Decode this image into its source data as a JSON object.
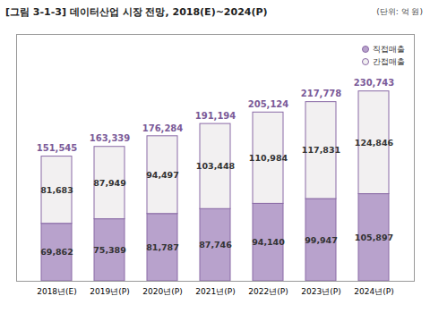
{
  "chart_data": {
    "type": "bar",
    "title": "[그림 3-1-3] 데이터산업 시장 전망, 2018(E)~2024(P)",
    "subtitle": "(단위: 억 원)",
    "categories": [
      "2018년(E)",
      "2019년(P)",
      "2020년(P)",
      "2021년(P)",
      "2022년(P)",
      "2023년(P)",
      "2024년(P)"
    ],
    "series": [
      {
        "name": "직접매출",
        "color": "#b8a2cc",
        "values": [
          69862,
          75389,
          81787,
          87746,
          94140,
          99947,
          105897
        ],
        "value_labels": [
          "69,862",
          "75,389",
          "81,787",
          "87,746",
          "94,140",
          "99,947",
          "105,897"
        ]
      },
      {
        "name": "간접매출",
        "color": "#f2f0f1",
        "values": [
          81683,
          87949,
          94497,
          103448,
          110984,
          117831,
          124846
        ],
        "value_labels": [
          "81,683",
          "87,949",
          "94,497",
          "103,448",
          "110,984",
          "117,831",
          "124,846"
        ]
      }
    ],
    "totals": [
      151545,
      163339,
      176284,
      191194,
      205124,
      217778,
      230743
    ],
    "total_labels": [
      "151,545",
      "163,339",
      "176,284",
      "191,194",
      "205,124",
      "217,778",
      "230,743"
    ],
    "stacked": true,
    "data_labels": true,
    "legend": "top-right",
    "tick_labels": "x",
    "grid": false,
    "ylim": [
      0,
      300000
    ]
  }
}
